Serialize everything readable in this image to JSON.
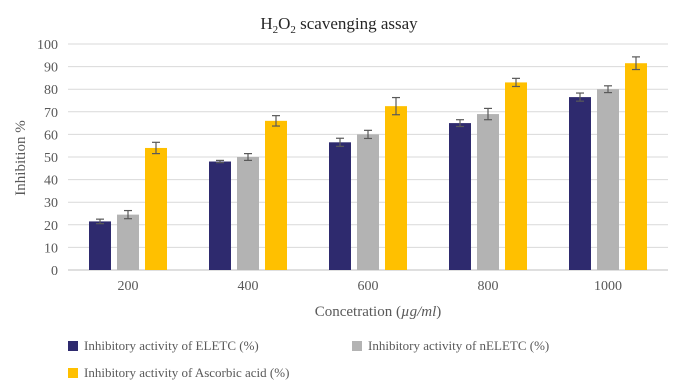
{
  "chart_data": {
    "type": "bar",
    "title_main": "H",
    "title_sub1": "2",
    "title_mid": "O",
    "title_sub2": "2",
    "title_rest": " scavenging assay",
    "xlabel_main": "Concetration (",
    "xlabel_italic": "µg/ml",
    "xlabel_end": ")",
    "ylabel": "Inhibition %",
    "ylim": [
      0,
      100
    ],
    "yticks": [
      0,
      10,
      20,
      30,
      40,
      50,
      60,
      70,
      80,
      90,
      100
    ],
    "categories": [
      "200",
      "400",
      "600",
      "800",
      "1000"
    ],
    "series": [
      {
        "name": "Inhibitory activity of  ELETC (%)",
        "color": "#2e2a6e",
        "values": [
          21.5,
          48,
          56.5,
          65,
          76.5
        ],
        "errors": [
          1,
          0.5,
          1.8,
          1.5,
          1.8
        ]
      },
      {
        "name": "Inhibitory activity of nELETC (%)",
        "color": "#b3b3b3",
        "values": [
          24.5,
          50,
          60,
          69,
          80
        ],
        "errors": [
          1.8,
          1.5,
          1.8,
          2.5,
          1.5
        ]
      },
      {
        "name": "Inhibitory activity of Ascorbic acid (%)",
        "color": "#ffc000",
        "values": [
          54,
          66,
          72.5,
          83,
          91.5
        ],
        "errors": [
          2.5,
          2.3,
          3.8,
          1.8,
          2.8
        ]
      }
    ],
    "grid": true,
    "legend_position": "bottom"
  }
}
